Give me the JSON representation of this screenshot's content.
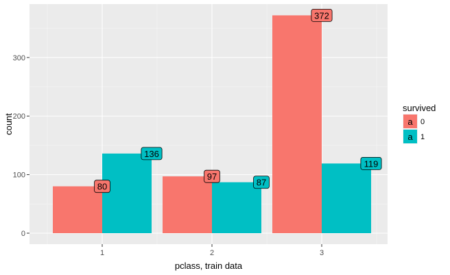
{
  "chart_data": {
    "type": "bar",
    "title": "",
    "xlabel": "pclass, train data",
    "ylabel": "count",
    "categories": [
      "1",
      "2",
      "3"
    ],
    "series": [
      {
        "name": "0",
        "values": [
          80,
          97,
          372
        ]
      },
      {
        "name": "1",
        "values": [
          136,
          87,
          119
        ]
      }
    ],
    "data_labels": [
      [
        "80",
        "97",
        "372"
      ],
      [
        "136",
        "87",
        "119"
      ]
    ],
    "ylim": [
      0,
      391
    ],
    "yticks": [
      0,
      100,
      200,
      300
    ],
    "ytick_labels": [
      "0",
      "100",
      "200",
      "300"
    ],
    "grid": true,
    "legend": {
      "title": "survived",
      "key_glyph": "a",
      "position": "right",
      "entries": [
        "0",
        "1"
      ]
    },
    "colors": {
      "series": [
        "#F8766D",
        "#00BFC4"
      ],
      "panel": "#EBEBEB",
      "grid": "#FFFFFF"
    }
  }
}
